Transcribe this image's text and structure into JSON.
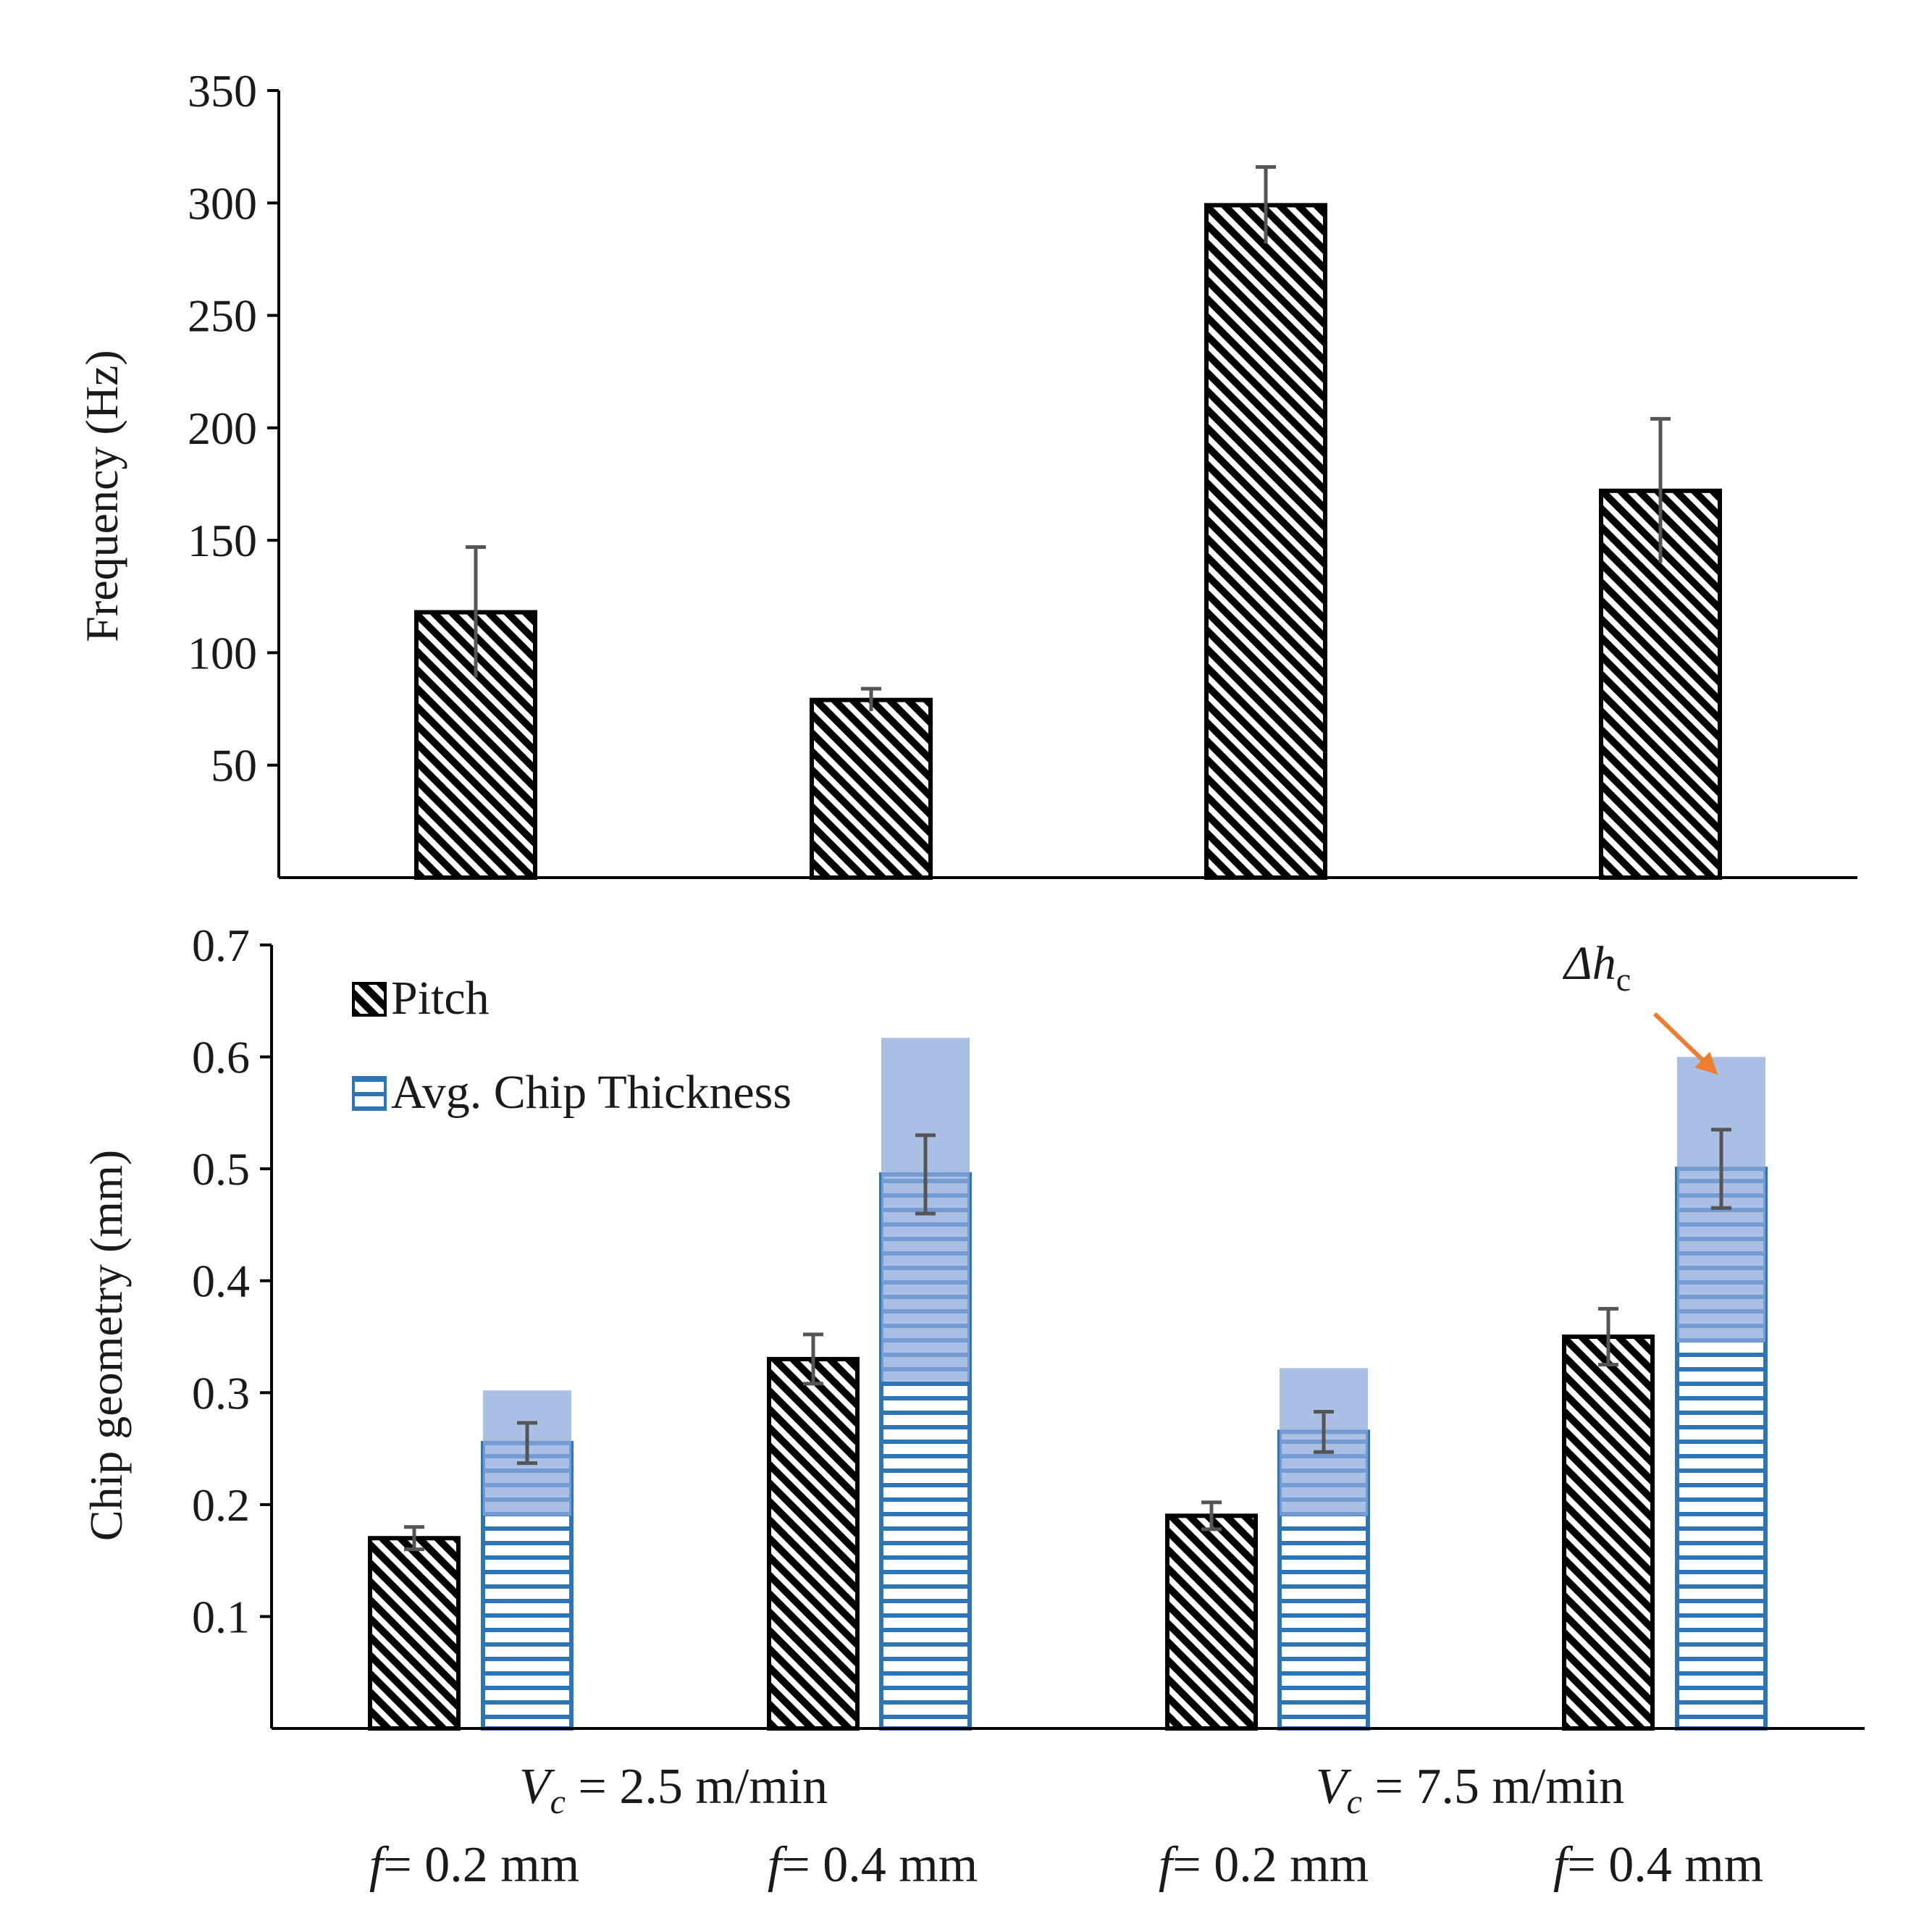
{
  "colors": {
    "pitch_stroke": "#000000",
    "thickness_stroke": "#2e75b6",
    "delta_fill": "#8eaadb",
    "annotation_arrow": "#ed7d31",
    "error_bar": "#555555",
    "axis": "#000000"
  },
  "chart_data": [
    {
      "type": "bar",
      "panel": "top",
      "ylabel": "Frequency (Hz)",
      "ylim": [
        0,
        350
      ],
      "yticks": [
        50,
        100,
        150,
        200,
        250,
        300,
        350
      ],
      "categories": [
        "f= 0.2 mm",
        "f= 0.4 mm",
        "f= 0.2 mm",
        "f= 0.4 mm"
      ],
      "series": [
        {
          "values": [
            118,
            79,
            299,
            172
          ],
          "errors": [
            29,
            5,
            17,
            32
          ],
          "pattern": "diagonal-hatch"
        }
      ]
    },
    {
      "type": "bar",
      "panel": "bottom",
      "ylabel": "Chip geometry (mm)",
      "ylim": [
        0,
        0.7
      ],
      "yticks": [
        0.1,
        0.2,
        0.3,
        0.4,
        0.5,
        0.6,
        0.7
      ],
      "categories": [
        "f= 0.2 mm",
        "f= 0.4 mm",
        "f= 0.2 mm",
        "f= 0.4 mm"
      ],
      "series": [
        {
          "name": "Pitch",
          "values": [
            0.17,
            0.33,
            0.19,
            0.35
          ],
          "errors": [
            0.01,
            0.022,
            0.012,
            0.025
          ],
          "pattern": "diagonal-hatch"
        },
        {
          "name": "Avg. Chip Thickness",
          "values": [
            0.255,
            0.495,
            0.265,
            0.5
          ],
          "errors": [
            0.018,
            0.035,
            0.018,
            0.035
          ],
          "range_low": [
            0.19,
            0.31,
            0.19,
            0.345
          ],
          "range_high": [
            0.302,
            0.617,
            0.322,
            0.6
          ],
          "pattern": "horizontal-lines"
        }
      ],
      "legend": "top-left",
      "annotation": {
        "text_main": "Δh",
        "text_sub": "c"
      }
    }
  ],
  "x_groups": [
    {
      "var": "V",
      "sub": "c",
      "text": " = 2.5 m/min"
    },
    {
      "var": "V",
      "sub": "c",
      "text": " = 7.5 m/min"
    }
  ],
  "x_categories": [
    {
      "var": "f",
      "text": "= 0.2 mm"
    },
    {
      "var": "f",
      "text": "= 0.4 mm"
    },
    {
      "var": "f",
      "text": "= 0.2 mm"
    },
    {
      "var": "f",
      "text": "= 0.4 mm"
    }
  ]
}
